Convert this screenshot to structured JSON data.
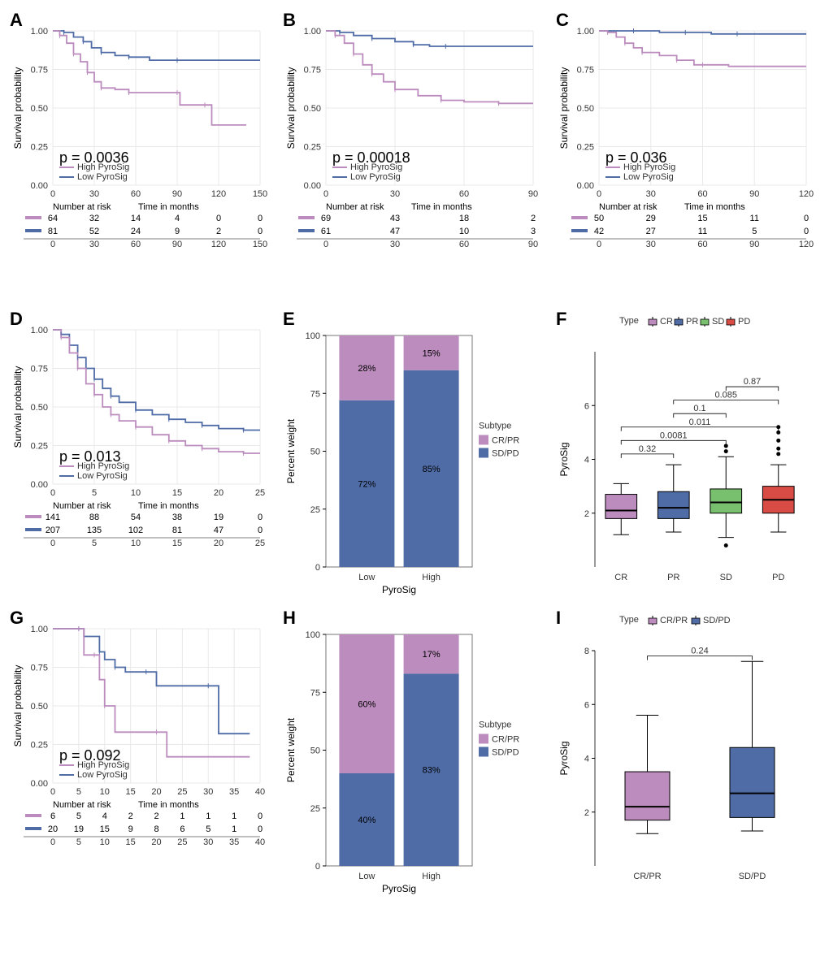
{
  "colors": {
    "high": "#bb8cbd",
    "low": "#4f6ca7",
    "crpr": "#bb8cbd",
    "sdpd": "#4f6ca7",
    "cr": "#bb8cbd",
    "pr": "#4f6ca7",
    "sd": "#79c06e",
    "pd": "#d94b45",
    "grid": "#e8e8e8",
    "bg": "#ffffff",
    "panel_border": "#555555"
  },
  "labels": {
    "survival_y": "Survival probability",
    "time_months": "Time in months",
    "number_at_risk": "Number at risk",
    "high": "High PyroSig",
    "low": "Low PyroSig",
    "percent_weight": "Percent weight",
    "pyrosig": "PyroSig",
    "subtype": "Subtype",
    "type": "Type",
    "crpr": "CR/PR",
    "sdpd": "SD/PD",
    "cr": "CR",
    "pr": "PR",
    "sd": "SD",
    "pd": "PD",
    "low_cat": "Low",
    "high_cat": "High"
  },
  "panels": {
    "A": {
      "type": "km",
      "p": "p = 0.0036",
      "xmax": 150,
      "xticks": [
        0,
        30,
        60,
        90,
        120,
        150
      ],
      "yticks": [
        0.0,
        0.25,
        0.5,
        0.75,
        1.0
      ],
      "high_path": [
        [
          0,
          1.0
        ],
        [
          5,
          0.97
        ],
        [
          10,
          0.92
        ],
        [
          15,
          0.85
        ],
        [
          20,
          0.8
        ],
        [
          25,
          0.73
        ],
        [
          30,
          0.67
        ],
        [
          35,
          0.63
        ],
        [
          45,
          0.62
        ],
        [
          55,
          0.6
        ],
        [
          80,
          0.6
        ],
        [
          90,
          0.6
        ],
        [
          92,
          0.52
        ],
        [
          110,
          0.52
        ],
        [
          115,
          0.39
        ],
        [
          140,
          0.39
        ]
      ],
      "low_path": [
        [
          0,
          1.0
        ],
        [
          8,
          0.99
        ],
        [
          15,
          0.96
        ],
        [
          22,
          0.93
        ],
        [
          28,
          0.89
        ],
        [
          35,
          0.86
        ],
        [
          45,
          0.84
        ],
        [
          55,
          0.83
        ],
        [
          70,
          0.81
        ],
        [
          90,
          0.81
        ],
        [
          120,
          0.81
        ],
        [
          150,
          0.81
        ]
      ],
      "risk_high": [
        64,
        32,
        14,
        4,
        0,
        0
      ],
      "risk_low": [
        81,
        52,
        24,
        9,
        2,
        0
      ]
    },
    "B": {
      "type": "km",
      "p": "p = 0.00018",
      "xmax": 90,
      "xticks": [
        0,
        30,
        60,
        90
      ],
      "yticks": [
        0.0,
        0.25,
        0.5,
        0.75,
        1.0
      ],
      "high_path": [
        [
          0,
          1.0
        ],
        [
          4,
          0.97
        ],
        [
          8,
          0.92
        ],
        [
          12,
          0.85
        ],
        [
          16,
          0.78
        ],
        [
          20,
          0.72
        ],
        [
          25,
          0.67
        ],
        [
          30,
          0.62
        ],
        [
          40,
          0.58
        ],
        [
          50,
          0.55
        ],
        [
          60,
          0.54
        ],
        [
          75,
          0.53
        ],
        [
          90,
          0.53
        ]
      ],
      "low_path": [
        [
          0,
          1.0
        ],
        [
          6,
          0.99
        ],
        [
          12,
          0.97
        ],
        [
          20,
          0.95
        ],
        [
          30,
          0.93
        ],
        [
          38,
          0.91
        ],
        [
          45,
          0.9
        ],
        [
          52,
          0.9
        ],
        [
          70,
          0.9
        ],
        [
          90,
          0.9
        ]
      ],
      "risk_high": [
        69,
        43,
        18,
        2
      ],
      "risk_low": [
        61,
        47,
        10,
        3
      ]
    },
    "C": {
      "type": "km",
      "p": "p = 0.036",
      "xmax": 120,
      "xticks": [
        0,
        30,
        60,
        90,
        120
      ],
      "yticks": [
        0.0,
        0.25,
        0.5,
        0.75,
        1.0
      ],
      "high_path": [
        [
          0,
          1.0
        ],
        [
          5,
          0.99
        ],
        [
          10,
          0.96
        ],
        [
          15,
          0.92
        ],
        [
          20,
          0.89
        ],
        [
          25,
          0.86
        ],
        [
          35,
          0.84
        ],
        [
          45,
          0.81
        ],
        [
          55,
          0.78
        ],
        [
          60,
          0.78
        ],
        [
          75,
          0.77
        ],
        [
          120,
          0.77
        ]
      ],
      "low_path": [
        [
          0,
          1.0
        ],
        [
          20,
          1.0
        ],
        [
          35,
          0.99
        ],
        [
          50,
          0.99
        ],
        [
          65,
          0.98
        ],
        [
          80,
          0.98
        ],
        [
          100,
          0.98
        ],
        [
          120,
          0.98
        ]
      ],
      "risk_high": [
        50,
        29,
        15,
        11,
        0
      ],
      "risk_low": [
        42,
        27,
        11,
        5,
        0
      ]
    },
    "D": {
      "type": "km",
      "p": "p = 0.013",
      "xmax": 25,
      "xticks": [
        0,
        5,
        10,
        15,
        20,
        25
      ],
      "yticks": [
        0.0,
        0.25,
        0.5,
        0.75,
        1.0
      ],
      "high_path": [
        [
          0,
          1.0
        ],
        [
          1,
          0.95
        ],
        [
          2,
          0.85
        ],
        [
          3,
          0.75
        ],
        [
          4,
          0.65
        ],
        [
          5,
          0.58
        ],
        [
          6,
          0.5
        ],
        [
          7,
          0.45
        ],
        [
          8,
          0.41
        ],
        [
          10,
          0.37
        ],
        [
          12,
          0.32
        ],
        [
          14,
          0.28
        ],
        [
          16,
          0.25
        ],
        [
          18,
          0.23
        ],
        [
          20,
          0.21
        ],
        [
          23,
          0.2
        ],
        [
          25,
          0.2
        ]
      ],
      "low_path": [
        [
          0,
          1.0
        ],
        [
          1,
          0.97
        ],
        [
          2,
          0.9
        ],
        [
          3,
          0.82
        ],
        [
          4,
          0.75
        ],
        [
          5,
          0.68
        ],
        [
          6,
          0.62
        ],
        [
          7,
          0.57
        ],
        [
          8,
          0.53
        ],
        [
          10,
          0.48
        ],
        [
          12,
          0.45
        ],
        [
          14,
          0.42
        ],
        [
          16,
          0.4
        ],
        [
          18,
          0.38
        ],
        [
          20,
          0.36
        ],
        [
          23,
          0.35
        ],
        [
          25,
          0.35
        ]
      ],
      "risk_high": [
        141,
        88,
        54,
        38,
        19,
        0
      ],
      "risk_low": [
        207,
        135,
        102,
        81,
        47,
        0
      ]
    },
    "E": {
      "type": "stacked_bar",
      "categories": [
        "Low",
        "High"
      ],
      "crpr": [
        28,
        15
      ],
      "sdpd": [
        72,
        85
      ],
      "ylim": [
        0,
        100
      ],
      "ytick_step": 25
    },
    "F": {
      "type": "boxplot4",
      "groups": [
        "CR",
        "PR",
        "SD",
        "PD"
      ],
      "boxes": {
        "CR": {
          "min": 1.2,
          "q1": 1.8,
          "med": 2.1,
          "q3": 2.7,
          "max": 3.1,
          "outliers": []
        },
        "PR": {
          "min": 1.3,
          "q1": 1.8,
          "med": 2.2,
          "q3": 2.8,
          "max": 3.8,
          "outliers": []
        },
        "SD": {
          "min": 1.1,
          "q1": 2.0,
          "med": 2.4,
          "q3": 2.9,
          "max": 4.1,
          "outliers": [
            0.8,
            4.3,
            4.5
          ]
        },
        "PD": {
          "min": 1.3,
          "q1": 2.0,
          "med": 2.5,
          "q3": 3.0,
          "max": 3.8,
          "outliers": [
            4.2,
            4.4,
            4.7,
            5.0,
            5.2
          ]
        }
      },
      "ylim": [
        0,
        8
      ],
      "yticks": [
        2,
        4,
        6
      ],
      "comparisons": [
        {
          "a": "CR",
          "b": "PR",
          "p": "0.32",
          "h": 4.2
        },
        {
          "a": "CR",
          "b": "SD",
          "p": "0.0081",
          "h": 4.7
        },
        {
          "a": "CR",
          "b": "PD",
          "p": "0.011",
          "h": 5.2
        },
        {
          "a": "PR",
          "b": "SD",
          "p": "0.1",
          "h": 5.7
        },
        {
          "a": "PR",
          "b": "PD",
          "p": "0.085",
          "h": 6.2
        },
        {
          "a": "SD",
          "b": "PD",
          "p": "0.87",
          "h": 6.7
        }
      ]
    },
    "G": {
      "type": "km",
      "p": "p = 0.092",
      "xmax": 40,
      "xticks": [
        0,
        5,
        10,
        15,
        20,
        25,
        30,
        35,
        40
      ],
      "yticks": [
        0.0,
        0.25,
        0.5,
        0.75,
        1.0
      ],
      "high_path": [
        [
          0,
          1.0
        ],
        [
          5,
          1.0
        ],
        [
          6,
          0.83
        ],
        [
          8,
          0.83
        ],
        [
          9,
          0.67
        ],
        [
          10,
          0.5
        ],
        [
          12,
          0.33
        ],
        [
          20,
          0.33
        ],
        [
          22,
          0.17
        ],
        [
          38,
          0.17
        ]
      ],
      "low_path": [
        [
          0,
          1.0
        ],
        [
          5,
          1.0
        ],
        [
          6,
          0.95
        ],
        [
          9,
          0.85
        ],
        [
          10,
          0.8
        ],
        [
          12,
          0.75
        ],
        [
          14,
          0.72
        ],
        [
          18,
          0.72
        ],
        [
          20,
          0.63
        ],
        [
          30,
          0.63
        ],
        [
          32,
          0.32
        ],
        [
          38,
          0.32
        ]
      ],
      "risk_high": [
        6,
        5,
        4,
        2,
        2,
        1,
        1,
        1,
        0
      ],
      "risk_low": [
        20,
        19,
        15,
        9,
        8,
        6,
        5,
        1,
        0
      ]
    },
    "H": {
      "type": "stacked_bar",
      "categories": [
        "Low",
        "High"
      ],
      "crpr": [
        60,
        17
      ],
      "sdpd": [
        40,
        83
      ],
      "ylim": [
        0,
        100
      ],
      "ytick_step": 25
    },
    "I": {
      "type": "boxplot2",
      "groups": [
        "CR/PR",
        "SD/PD"
      ],
      "boxes": {
        "CR/PR": {
          "min": 1.2,
          "q1": 1.7,
          "med": 2.2,
          "q3": 3.5,
          "max": 5.6,
          "color": "#bb8cbd"
        },
        "SD/PD": {
          "min": 1.3,
          "q1": 1.8,
          "med": 2.7,
          "q3": 4.4,
          "max": 7.6,
          "color": "#4f6ca7"
        }
      },
      "ylim": [
        0,
        8
      ],
      "yticks": [
        2,
        4,
        6,
        8
      ],
      "comparisons": [
        {
          "a": "CR/PR",
          "b": "SD/PD",
          "p": "0.24",
          "h": 7.8
        }
      ]
    }
  }
}
